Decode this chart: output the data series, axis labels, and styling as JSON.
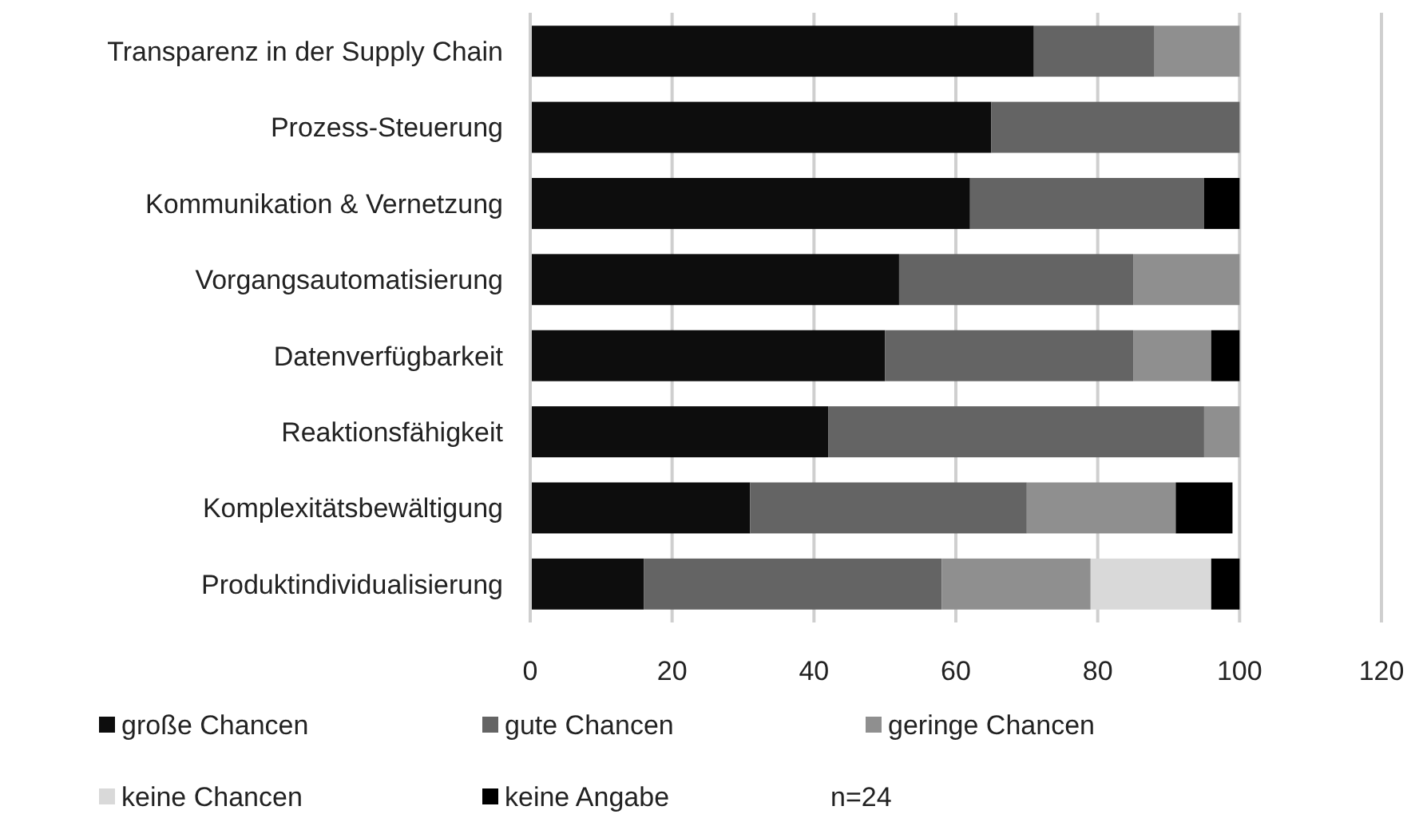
{
  "chart_data": {
    "type": "bar",
    "orientation": "horizontal",
    "stacked": true,
    "categories": [
      "Transparenz in der Supply Chain",
      "Prozess-Steuerung",
      "Kommunikation & Vernetzung",
      "Vorgangsautomatisierung",
      "Datenverfügbarkeit",
      "Reaktionsfähigkeit",
      "Komplexitätsbewältigung",
      "Produktindividualisierung"
    ],
    "series": [
      {
        "name": "große Chancen",
        "color": "#0d0d0d",
        "values": [
          71,
          65,
          62,
          52,
          50,
          42,
          31,
          16
        ]
      },
      {
        "name": "gute Chancen",
        "color": "#646464",
        "values": [
          17,
          35,
          33,
          33,
          35,
          53,
          39,
          42
        ]
      },
      {
        "name": "geringe Chancen",
        "color": "#8f8f8f",
        "values": [
          12,
          0,
          0,
          15,
          11,
          5,
          21,
          21
        ]
      },
      {
        "name": "keine Chancen",
        "color": "#d9d9d9",
        "values": [
          0,
          0,
          0,
          0,
          0,
          0,
          0,
          17
        ]
      },
      {
        "name": "keine Angabe",
        "color": "#000000",
        "values": [
          0,
          0,
          5,
          0,
          4,
          0,
          8,
          4
        ]
      }
    ],
    "xlim": [
      0,
      120
    ],
    "xticks": [
      0,
      20,
      40,
      60,
      80,
      100,
      120
    ],
    "grid": "x",
    "legend": "bottom",
    "annotations": [
      "n=24"
    ]
  }
}
